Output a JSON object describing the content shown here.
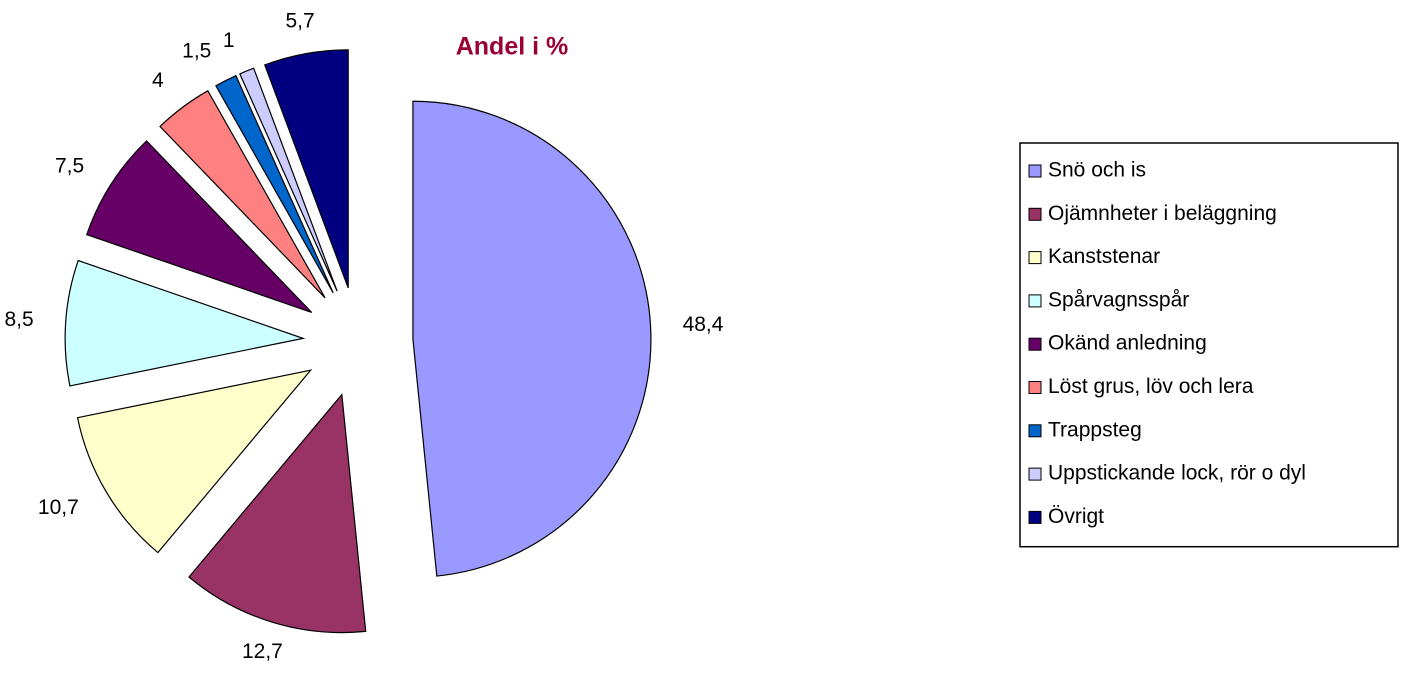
{
  "chart_data": {
    "type": "pie",
    "title": "Andel i %",
    "categories": [
      "Snö och is",
      "Ojämnheter i beläggning",
      "Kanststenar",
      "Spårvagnsspår",
      "Okänd anledning",
      "Löst grus, löv och lera",
      "Trappsteg",
      "Uppstickande lock, rör o dyl",
      "Övrigt"
    ],
    "values": [
      48.4,
      12.7,
      10.7,
      8.5,
      7.5,
      4,
      1.5,
      1,
      5.7
    ],
    "value_labels": [
      "48,4",
      "12,7",
      "10,7",
      "8,5",
      "7,5",
      "4",
      "1,5",
      "1",
      "5,7"
    ],
    "colors": [
      "#9999ff",
      "#993366",
      "#ffffcc",
      "#ccffff",
      "#660066",
      "#ff8080",
      "#0066cc",
      "#ccccff",
      "#000080"
    ],
    "legend": "right"
  }
}
